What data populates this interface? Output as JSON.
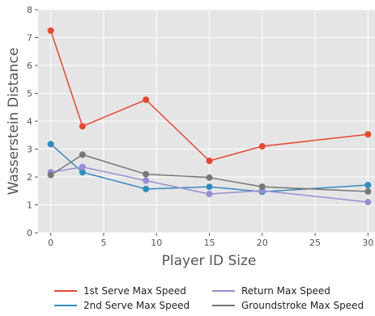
{
  "chart_data": {
    "type": "line",
    "xlabel": "Player ID Size",
    "ylabel": "Wasserstein Distance",
    "xlim": [
      -1.2,
      31.2
    ],
    "ylim": [
      0,
      8
    ],
    "xticks": [
      0,
      5,
      10,
      15,
      20,
      25,
      30
    ],
    "yticks": [
      0,
      1,
      2,
      3,
      4,
      5,
      6,
      7,
      8
    ],
    "grid": true,
    "legend_placement": "bottom",
    "x": [
      0,
      3,
      9,
      15,
      20,
      30
    ],
    "series": [
      {
        "name": "1st Serve Max Speed",
        "color": "#E24A33",
        "values": [
          7.25,
          3.82,
          4.77,
          2.58,
          3.1,
          3.53
        ]
      },
      {
        "name": "2nd Serve Max Speed",
        "color": "#348ABD",
        "values": [
          3.18,
          2.17,
          1.57,
          1.65,
          1.47,
          1.71
        ]
      },
      {
        "name": "Return Max Speed",
        "color": "#988ED5",
        "values": [
          2.17,
          2.36,
          1.87,
          1.39,
          1.51,
          1.1
        ]
      },
      {
        "name": "Groundstroke Max Speed",
        "color": "#777777",
        "values": [
          2.07,
          2.8,
          2.1,
          1.98,
          1.65,
          1.48
        ]
      }
    ]
  }
}
